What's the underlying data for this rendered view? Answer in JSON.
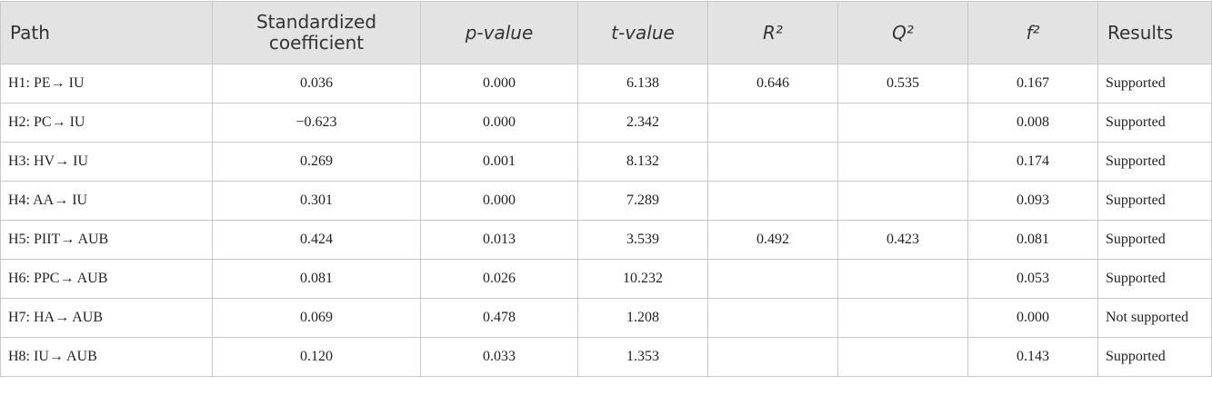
{
  "table": {
    "header": [
      "Path",
      "Standardized coefficient",
      "p-value",
      "t-value",
      "R²",
      "Q²",
      "f²",
      "Results"
    ],
    "rows": [
      [
        "H1: PE→ IU",
        "0.036",
        "0.000",
        "6.138",
        "0.646",
        "0.535",
        "0.167",
        "Supported"
      ],
      [
        "H2: PC→ IU",
        "−0.623",
        "0.000",
        "2.342",
        null,
        null,
        "0.008",
        "Supported"
      ],
      [
        "H3: HV→ IU",
        "0.269",
        "0.001",
        "8.132",
        null,
        null,
        "0.174",
        "Supported"
      ],
      [
        "H4: AA→ IU",
        "0.301",
        "0.000",
        "7.289",
        null,
        null,
        "0.093",
        "Supported"
      ],
      [
        "H5: PIIT→ AUB",
        "0.424",
        "0.013",
        "3.539",
        "0.492",
        "0.423",
        "0.081",
        "Supported"
      ],
      [
        "H6: PPC→ AUB",
        "0.081",
        "0.026",
        "10.232",
        null,
        null,
        "0.053",
        "Supported"
      ],
      [
        "H7: HA→ AUB",
        "0.069",
        "0.478",
        "1.208",
        null,
        null,
        "0.000",
        "Not supported"
      ],
      [
        "H8: IU→ AUB",
        "0.120",
        "0.033",
        "1.353",
        null,
        null,
        "0.143",
        "Supported"
      ]
    ]
  }
}
